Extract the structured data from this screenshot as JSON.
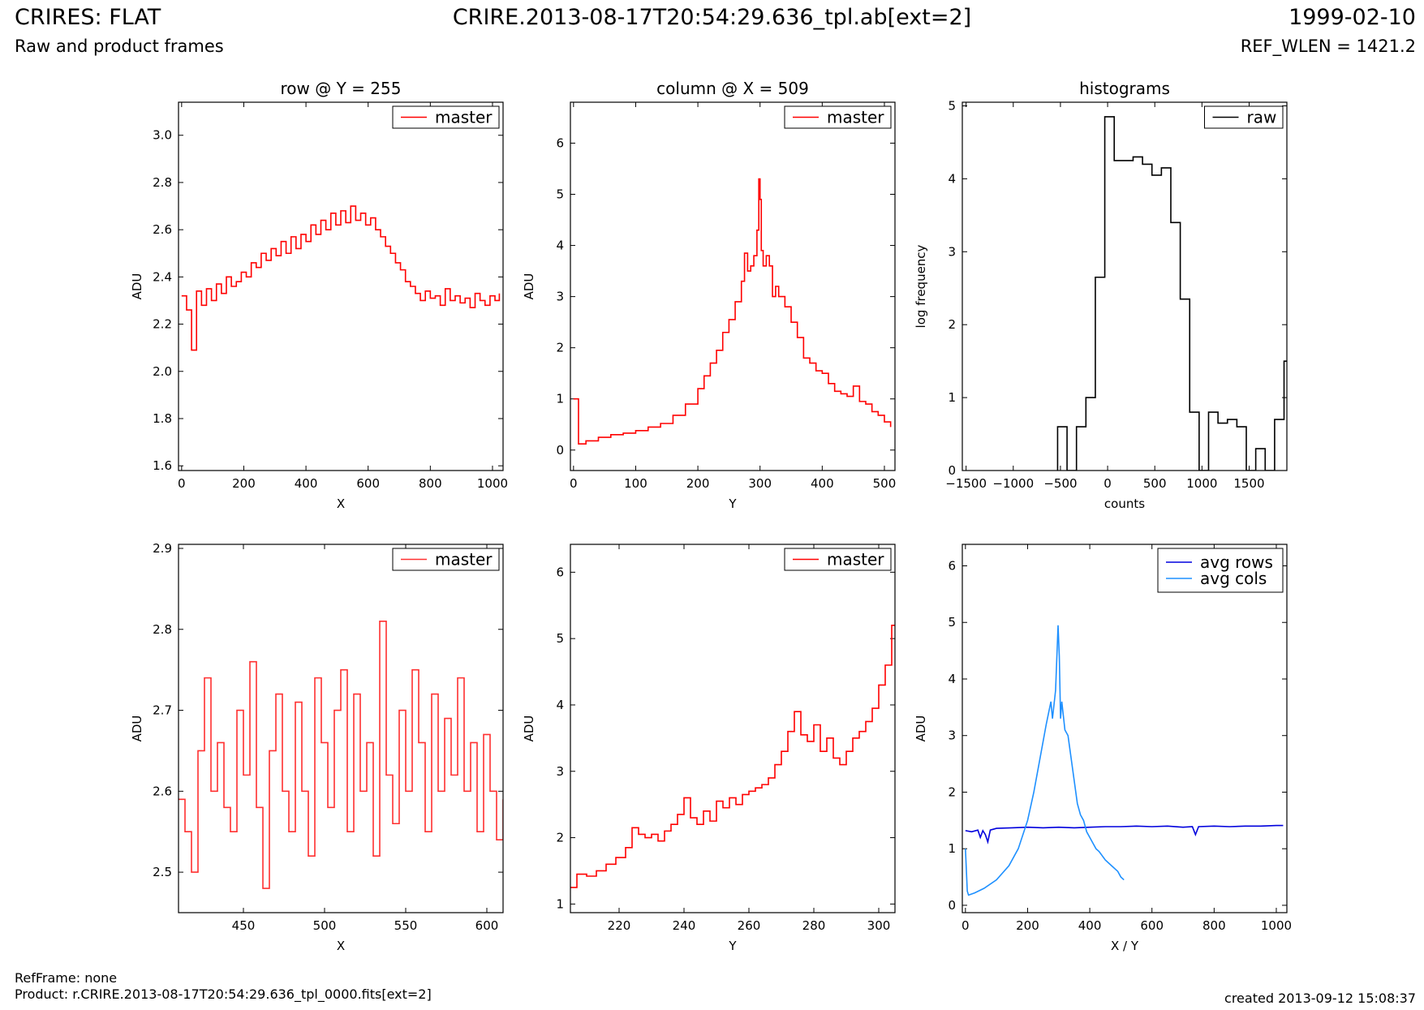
{
  "header": {
    "title": "CRIRES: FLAT",
    "subtitle": "Raw and product frames",
    "file": "CRIRE.2013-08-17T20:54:29.636_tpl.ab[ext=2]",
    "date": "1999-02-10",
    "ref_wlen": "REF_WLEN = 1421.2"
  },
  "footer": {
    "refframe": "RefFrame: none",
    "product": "Product: r.CRIRE.2013-08-17T20:54:29.636_tpl_0000.fits[ext=2]",
    "created": "created 2013-09-12 15:08:37"
  },
  "chart_data": [
    {
      "type": "line",
      "title": "row @ Y = 255",
      "xlabel": "X",
      "ylabel": "ADU",
      "xlim": [
        -10,
        1034
      ],
      "ylim": [
        1.58,
        3.14
      ],
      "xticks": [
        0,
        200,
        400,
        600,
        800,
        1000
      ],
      "yticks": [
        1.6,
        1.8,
        2.0,
        2.2,
        2.4,
        2.6,
        2.8,
        3.0
      ],
      "ytick_decimals": 1,
      "legend": "top-right",
      "series": [
        {
          "name": "master",
          "color": "#ff0000",
          "style": "step",
          "x": [
            0,
            16,
            32,
            48,
            64,
            80,
            96,
            112,
            128,
            144,
            160,
            176,
            192,
            208,
            224,
            240,
            256,
            272,
            288,
            304,
            320,
            336,
            352,
            368,
            384,
            400,
            416,
            432,
            448,
            464,
            480,
            496,
            512,
            528,
            544,
            560,
            576,
            592,
            608,
            624,
            640,
            656,
            672,
            688,
            704,
            720,
            736,
            752,
            768,
            784,
            800,
            816,
            832,
            848,
            864,
            880,
            896,
            912,
            928,
            944,
            960,
            976,
            992,
            1008,
            1022
          ],
          "values": [
            2.32,
            2.26,
            2.09,
            2.34,
            2.28,
            2.35,
            2.3,
            2.37,
            2.33,
            2.4,
            2.36,
            2.38,
            2.42,
            2.4,
            2.46,
            2.44,
            2.5,
            2.47,
            2.52,
            2.49,
            2.55,
            2.5,
            2.57,
            2.52,
            2.58,
            2.55,
            2.62,
            2.58,
            2.64,
            2.6,
            2.67,
            2.62,
            2.68,
            2.63,
            2.7,
            2.64,
            2.67,
            2.62,
            2.65,
            2.6,
            2.57,
            2.53,
            2.5,
            2.46,
            2.43,
            2.38,
            2.36,
            2.33,
            2.3,
            2.34,
            2.31,
            2.32,
            2.28,
            2.35,
            2.3,
            2.32,
            2.29,
            2.31,
            2.27,
            2.33,
            2.3,
            2.28,
            2.32,
            2.3,
            2.33
          ]
        }
      ]
    },
    {
      "type": "line",
      "title": "column @ X = 509",
      "xlabel": "Y",
      "ylabel": "ADU",
      "xlim": [
        -5,
        517
      ],
      "ylim": [
        -0.4,
        6.8
      ],
      "xticks": [
        0,
        100,
        200,
        300,
        400,
        500
      ],
      "yticks": [
        0,
        1,
        2,
        3,
        4,
        5,
        6
      ],
      "ytick_decimals": 0,
      "legend": "top-right",
      "series": [
        {
          "name": "master",
          "color": "#ff0000",
          "style": "step",
          "x": [
            0,
            6,
            8,
            20,
            40,
            60,
            80,
            100,
            120,
            140,
            160,
            180,
            200,
            210,
            220,
            230,
            240,
            250,
            260,
            270,
            275,
            280,
            285,
            290,
            295,
            298,
            300,
            302,
            305,
            310,
            315,
            320,
            325,
            330,
            340,
            350,
            360,
            370,
            380,
            390,
            400,
            410,
            420,
            430,
            440,
            450,
            460,
            470,
            480,
            490,
            500,
            510
          ],
          "values": [
            1.0,
            1.0,
            0.12,
            0.18,
            0.25,
            0.3,
            0.33,
            0.38,
            0.45,
            0.52,
            0.68,
            0.9,
            1.2,
            1.45,
            1.7,
            1.95,
            2.3,
            2.55,
            2.9,
            3.3,
            3.85,
            3.5,
            3.6,
            3.8,
            4.3,
            5.3,
            4.9,
            3.9,
            3.6,
            3.8,
            3.6,
            3.0,
            3.2,
            3.0,
            2.8,
            2.5,
            2.2,
            1.8,
            1.7,
            1.55,
            1.5,
            1.3,
            1.15,
            1.1,
            1.05,
            1.25,
            0.95,
            0.9,
            0.75,
            0.68,
            0.55,
            0.45
          ]
        }
      ]
    },
    {
      "type": "line",
      "title": "histograms",
      "xlabel": "counts",
      "ylabel": "log frequency",
      "xlim": [
        -1540,
        1900
      ],
      "ylim": [
        0,
        5.05
      ],
      "xticks": [
        -1500,
        -1000,
        -500,
        0,
        500,
        1000,
        1500
      ],
      "yticks": [
        0,
        1,
        2,
        3,
        4,
        5
      ],
      "ytick_decimals": 0,
      "legend": "top-right",
      "series": [
        {
          "name": "raw",
          "color": "#000000",
          "style": "hist",
          "x": [
            -480,
            -380,
            -280,
            -180,
            -80,
            20,
            120,
            220,
            320,
            420,
            520,
            620,
            720,
            820,
            920,
            1020,
            1120,
            1220,
            1320,
            1420,
            1520,
            1620,
            1720,
            1820,
            1920
          ],
          "values": [
            0.6,
            0,
            0.6,
            1.0,
            2.65,
            4.85,
            4.25,
            4.25,
            4.3,
            4.2,
            4.05,
            4.15,
            3.4,
            2.35,
            0.8,
            0,
            0.8,
            0.65,
            0.7,
            0.6,
            0,
            0.3,
            0,
            0.7,
            1.5
          ]
        }
      ]
    },
    {
      "type": "line",
      "title": "",
      "xlabel": "X",
      "ylabel": "ADU",
      "xlim": [
        410,
        610
      ],
      "ylim": [
        2.45,
        2.905
      ],
      "xticks": [
        450,
        500,
        550,
        600
      ],
      "yticks": [
        2.5,
        2.6,
        2.7,
        2.8,
        2.9
      ],
      "ytick_decimals": 1,
      "legend": "top-right",
      "series": [
        {
          "name": "master",
          "color": "#ff3030",
          "style": "step",
          "x": [
            410,
            414,
            418,
            422,
            426,
            430,
            434,
            438,
            442,
            446,
            450,
            454,
            458,
            462,
            466,
            470,
            474,
            478,
            482,
            486,
            490,
            494,
            498,
            502,
            506,
            510,
            514,
            518,
            522,
            526,
            530,
            534,
            538,
            542,
            546,
            550,
            554,
            558,
            562,
            566,
            570,
            574,
            578,
            582,
            586,
            590,
            594,
            598,
            602,
            606,
            610
          ],
          "values": [
            2.59,
            2.55,
            2.5,
            2.65,
            2.74,
            2.6,
            2.66,
            2.58,
            2.55,
            2.7,
            2.62,
            2.76,
            2.58,
            2.48,
            2.65,
            2.72,
            2.6,
            2.55,
            2.71,
            2.6,
            2.52,
            2.74,
            2.66,
            2.58,
            2.7,
            2.75,
            2.55,
            2.72,
            2.6,
            2.66,
            2.52,
            2.81,
            2.62,
            2.56,
            2.7,
            2.6,
            2.75,
            2.66,
            2.55,
            2.72,
            2.6,
            2.69,
            2.62,
            2.74,
            2.6,
            2.66,
            2.55,
            2.67,
            2.6,
            2.54,
            2.59
          ]
        }
      ]
    },
    {
      "type": "line",
      "title": "",
      "xlabel": "Y",
      "ylabel": "ADU",
      "xlim": [
        205,
        305
      ],
      "ylim": [
        0.87,
        6.42
      ],
      "xticks": [
        220,
        240,
        260,
        280,
        300
      ],
      "yticks": [
        1,
        2,
        3,
        4,
        5,
        6
      ],
      "ytick_decimals": 0,
      "legend": "top-right",
      "series": [
        {
          "name": "master",
          "color": "#ff0000",
          "style": "step",
          "x": [
            205,
            207,
            210,
            213,
            216,
            219,
            222,
            224,
            226,
            228,
            230,
            232,
            234,
            236,
            238,
            240,
            242,
            244,
            246,
            248,
            250,
            252,
            254,
            256,
            258,
            260,
            262,
            264,
            266,
            268,
            270,
            272,
            274,
            276,
            278,
            280,
            282,
            284,
            286,
            288,
            290,
            292,
            294,
            296,
            298,
            300,
            302,
            304,
            305
          ],
          "values": [
            1.25,
            1.45,
            1.42,
            1.5,
            1.6,
            1.7,
            1.85,
            2.15,
            2.05,
            2.0,
            2.05,
            1.95,
            2.1,
            2.2,
            2.35,
            2.6,
            2.3,
            2.2,
            2.4,
            2.25,
            2.55,
            2.45,
            2.6,
            2.5,
            2.65,
            2.7,
            2.75,
            2.8,
            2.9,
            3.1,
            3.3,
            3.6,
            3.9,
            3.55,
            3.45,
            3.7,
            3.3,
            3.5,
            3.2,
            3.1,
            3.3,
            3.5,
            3.6,
            3.75,
            3.95,
            4.3,
            4.6,
            5.2,
            5.2
          ]
        }
      ]
    },
    {
      "type": "line",
      "title": "",
      "xlabel": "X / Y",
      "ylabel": "ADU",
      "xlim": [
        -10,
        1034
      ],
      "ylim": [
        -0.13,
        6.38
      ],
      "xticks": [
        0,
        200,
        400,
        600,
        800,
        1000
      ],
      "yticks": [
        0,
        1,
        2,
        3,
        4,
        5,
        6
      ],
      "ytick_decimals": 0,
      "legend": "top-right",
      "series": [
        {
          "name": "avg rows",
          "color": "#0000dd",
          "style": "line",
          "x": [
            0,
            20,
            40,
            48,
            56,
            64,
            72,
            80,
            100,
            150,
            200,
            250,
            300,
            350,
            400,
            450,
            500,
            550,
            600,
            650,
            700,
            730,
            740,
            750,
            800,
            850,
            900,
            950,
            1000,
            1022
          ],
          "values": [
            1.32,
            1.3,
            1.33,
            1.2,
            1.32,
            1.25,
            1.12,
            1.33,
            1.36,
            1.37,
            1.38,
            1.37,
            1.38,
            1.37,
            1.38,
            1.39,
            1.39,
            1.4,
            1.39,
            1.4,
            1.38,
            1.39,
            1.25,
            1.39,
            1.4,
            1.39,
            1.4,
            1.4,
            1.41,
            1.41
          ]
        },
        {
          "name": "avg cols",
          "color": "#1e90ff",
          "style": "line",
          "x": [
            0,
            6,
            10,
            30,
            60,
            100,
            140,
            170,
            200,
            220,
            240,
            260,
            275,
            280,
            290,
            298,
            302,
            306,
            310,
            320,
            330,
            340,
            350,
            360,
            370,
            380,
            390,
            400,
            410,
            420,
            430,
            450,
            470,
            490,
            500,
            510
          ],
          "values": [
            1.0,
            0.25,
            0.18,
            0.22,
            0.3,
            0.45,
            0.7,
            1.0,
            1.5,
            2.0,
            2.6,
            3.2,
            3.6,
            3.3,
            3.8,
            4.95,
            4.4,
            3.3,
            3.6,
            3.1,
            3.0,
            2.6,
            2.2,
            1.8,
            1.6,
            1.5,
            1.3,
            1.2,
            1.1,
            1.0,
            0.95,
            0.8,
            0.7,
            0.6,
            0.5,
            0.45
          ]
        }
      ]
    }
  ]
}
